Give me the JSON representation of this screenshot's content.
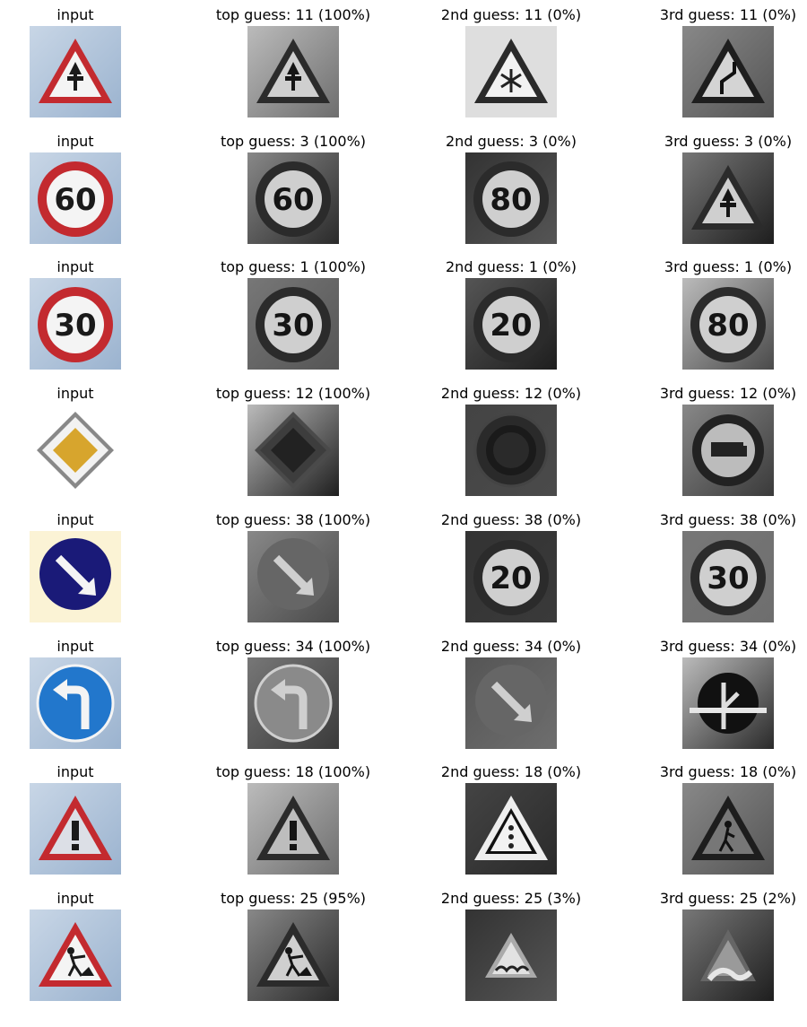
{
  "rows": [
    {
      "cells": [
        {
          "label": "input",
          "icon": "warning-triangle-icon",
          "mode": "color",
          "sign": "priority-ahead"
        },
        {
          "label": "top guess: 11 (100%)",
          "icon": "warning-triangle-icon",
          "mode": "gray",
          "sign": "priority-ahead"
        },
        {
          "label": "2nd guess: 11 (0%)",
          "icon": "snowflake-warning-icon",
          "mode": "gray",
          "sign": "snow"
        },
        {
          "label": "3rd guess: 11 (0%)",
          "icon": "curve-warning-icon",
          "mode": "gray",
          "sign": "curve"
        }
      ]
    },
    {
      "cells": [
        {
          "label": "input",
          "icon": "speed-limit-60-icon",
          "mode": "color",
          "sign": "speed",
          "text": "60"
        },
        {
          "label": "top guess: 3 (100%)",
          "icon": "speed-limit-60-icon",
          "mode": "gray",
          "sign": "speed",
          "text": "60"
        },
        {
          "label": "2nd guess: 3 (0%)",
          "icon": "speed-limit-80-icon",
          "mode": "gray",
          "sign": "speed",
          "text": "80"
        },
        {
          "label": "3rd guess: 3 (0%)",
          "icon": "warning-triangle-icon",
          "mode": "gray",
          "sign": "priority-ahead"
        }
      ]
    },
    {
      "cells": [
        {
          "label": "input",
          "icon": "speed-limit-30-icon",
          "mode": "color",
          "sign": "speed",
          "text": "30"
        },
        {
          "label": "top guess: 1 (100%)",
          "icon": "speed-limit-30-icon",
          "mode": "gray",
          "sign": "speed",
          "text": "30"
        },
        {
          "label": "2nd guess: 1 (0%)",
          "icon": "speed-limit-20-icon",
          "mode": "gray",
          "sign": "speed",
          "text": "20"
        },
        {
          "label": "3rd guess: 1 (0%)",
          "icon": "speed-limit-80-icon",
          "mode": "gray",
          "sign": "speed",
          "text": "80"
        }
      ]
    },
    {
      "cells": [
        {
          "label": "input",
          "icon": "priority-road-icon",
          "mode": "color",
          "sign": "diamond"
        },
        {
          "label": "top guess: 12 (100%)",
          "icon": "priority-road-icon",
          "mode": "gray",
          "sign": "diamond"
        },
        {
          "label": "2nd guess: 12 (0%)",
          "icon": "roundabout-icon",
          "mode": "gray",
          "sign": "roundabout"
        },
        {
          "label": "3rd guess: 12 (0%)",
          "icon": "no-passing-trucks-icon",
          "mode": "gray",
          "sign": "truck"
        }
      ]
    },
    {
      "cells": [
        {
          "label": "input",
          "icon": "keep-right-icon",
          "mode": "color",
          "sign": "keep-right"
        },
        {
          "label": "top guess: 38 (100%)",
          "icon": "keep-right-icon",
          "mode": "gray",
          "sign": "keep-right"
        },
        {
          "label": "2nd guess: 38 (0%)",
          "icon": "speed-limit-20-icon",
          "mode": "gray",
          "sign": "speed",
          "text": "20"
        },
        {
          "label": "3rd guess: 38 (0%)",
          "icon": "speed-limit-30-icon",
          "mode": "gray",
          "sign": "speed",
          "text": "30"
        }
      ]
    },
    {
      "cells": [
        {
          "label": "input",
          "icon": "turn-left-ahead-icon",
          "mode": "color",
          "sign": "turn-left"
        },
        {
          "label": "top guess: 34 (100%)",
          "icon": "turn-left-ahead-icon",
          "mode": "gray",
          "sign": "turn-left"
        },
        {
          "label": "2nd guess: 34 (0%)",
          "icon": "keep-right-icon",
          "mode": "gray",
          "sign": "keep-right"
        },
        {
          "label": "3rd guess: 34 (0%)",
          "icon": "straight-or-right-icon",
          "mode": "gray",
          "sign": "straight-right"
        }
      ]
    },
    {
      "cells": [
        {
          "label": "input",
          "icon": "general-caution-icon",
          "mode": "color",
          "sign": "caution"
        },
        {
          "label": "top guess: 18 (100%)",
          "icon": "general-caution-icon",
          "mode": "gray",
          "sign": "caution"
        },
        {
          "label": "2nd guess: 18 (0%)",
          "icon": "traffic-signals-icon",
          "mode": "gray",
          "sign": "signals"
        },
        {
          "label": "3rd guess: 18 (0%)",
          "icon": "pedestrians-icon",
          "mode": "gray",
          "sign": "pedestrian"
        }
      ]
    },
    {
      "cells": [
        {
          "label": "input",
          "icon": "road-work-icon",
          "mode": "color",
          "sign": "roadwork"
        },
        {
          "label": "top guess: 25 (95%)",
          "icon": "road-work-icon",
          "mode": "gray",
          "sign": "roadwork"
        },
        {
          "label": "2nd guess: 25 (3%)",
          "icon": "bumpy-road-icon",
          "mode": "gray",
          "sign": "bumpy"
        },
        {
          "label": "3rd guess: 25 (2%)",
          "icon": "slippery-road-icon",
          "mode": "gray",
          "sign": "slippery"
        }
      ]
    }
  ]
}
